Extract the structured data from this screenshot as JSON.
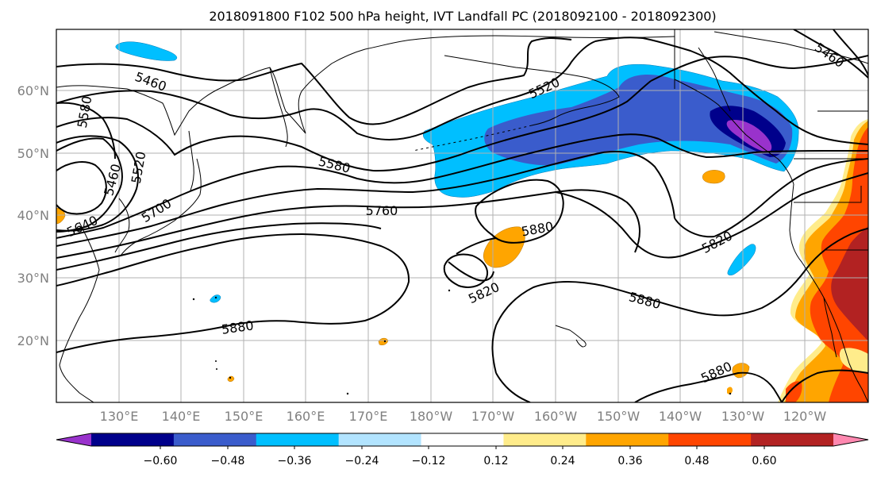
{
  "title": "2018091800 F102 500 hPa height, IVT Landfall PC (2018092100 - 2018092300)",
  "map": {
    "lat_labels": [
      "60°N",
      "50°N",
      "40°N",
      "30°N",
      "20°N"
    ],
    "lon_labels": [
      "130°E",
      "140°E",
      "150°E",
      "160°E",
      "170°E",
      "180°W",
      "170°W",
      "160°W",
      "150°W",
      "140°W",
      "130°W",
      "120°W"
    ],
    "gridlines": true,
    "contour_color": "#000000",
    "contour_labels": [
      "5460",
      "5580",
      "5460",
      "5520",
      "5640",
      "5700",
      "5580",
      "5760",
      "5520",
      "5880",
      "5820",
      "5820",
      "5880",
      "5880",
      "5880",
      "5460"
    ]
  },
  "colorbar": {
    "tick_labels": [
      "−0.60",
      "−0.48",
      "−0.36",
      "−0.24",
      "−0.12",
      "0.12",
      "0.24",
      "0.36",
      "0.48",
      "0.60"
    ],
    "colors": [
      "#9932cc",
      "#00008b",
      "#3a5ccc",
      "#00bfff",
      "#b2e4ff",
      "#ffffff",
      "#ffec8b",
      "#ffa500",
      "#ff4500",
      "#b22222",
      "#ff88b0"
    ]
  }
}
